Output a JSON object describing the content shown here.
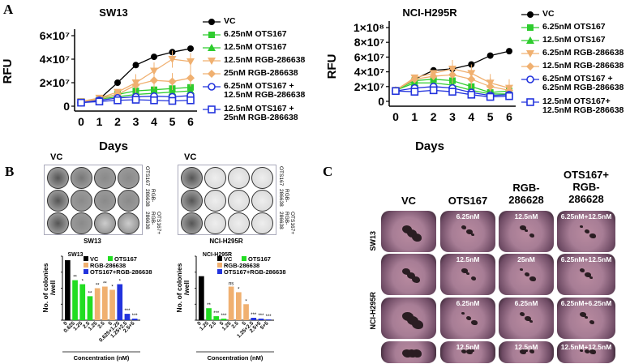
{
  "panels": {
    "A": "A",
    "B": "B",
    "C": "C"
  },
  "chart_data": [
    {
      "type": "line",
      "title": "SW13",
      "xlabel": "Days",
      "ylabel": "RFU",
      "x": [
        0,
        1,
        2,
        3,
        4,
        5,
        6
      ],
      "yticks": [
        "0",
        "2×10⁷",
        "4×10⁷",
        "6×10⁷"
      ],
      "ylim": [
        0,
        60000000
      ],
      "series": [
        {
          "name": "VC",
          "color": "#000000",
          "marker": "circle",
          "values": [
            3500000,
            6000000,
            20000000,
            35000000,
            42000000,
            46000000,
            49000000
          ]
        },
        {
          "name": "6.25nM OTS167",
          "color": "#2ecc2e",
          "marker": "square",
          "values": [
            4000000,
            6500000,
            10000000,
            13000000,
            14000000,
            15000000,
            16000000
          ]
        },
        {
          "name": "12.5nM OTS167",
          "color": "#2ecc2e",
          "marker": "triangle",
          "values": [
            3500000,
            6000000,
            8000000,
            10000000,
            11000000,
            12000000,
            13000000
          ]
        },
        {
          "name": "12.5nM RGB-286638",
          "color": "#f0b070",
          "marker": "triangle-down",
          "values": [
            4000000,
            7000000,
            12000000,
            20000000,
            30000000,
            40000000,
            38000000
          ]
        },
        {
          "name": "25nM RGB-286638",
          "color": "#f0b070",
          "marker": "diamond",
          "values": [
            3500000,
            6000000,
            10000000,
            18000000,
            22000000,
            21000000,
            24000000
          ]
        },
        {
          "name": "6.25nM OTS167 + 12.5nM RGB-286638",
          "color": "#2233dd",
          "marker": "circle-open",
          "values": [
            3000000,
            5000000,
            7000000,
            8000000,
            8500000,
            8000000,
            9000000
          ]
        },
        {
          "name": "12.5nM OTS167 + 25nM RGB-286638",
          "color": "#2233dd",
          "marker": "square-open",
          "values": [
            3000000,
            4000000,
            5000000,
            5500000,
            5000000,
            4500000,
            5000000
          ]
        }
      ]
    },
    {
      "type": "line",
      "title": "NCI-H295R",
      "xlabel": "Days",
      "ylabel": "RFU",
      "x": [
        0,
        1,
        2,
        3,
        4,
        5,
        6
      ],
      "yticks": [
        "0",
        "2×10⁷",
        "4×10⁷",
        "6×10⁷",
        "8×10⁷",
        "1×10⁸"
      ],
      "ylim": [
        0,
        100000000
      ],
      "series": [
        {
          "name": "VC",
          "color": "#000000",
          "marker": "circle",
          "values": [
            15000000,
            30000000,
            42000000,
            44000000,
            50000000,
            62000000,
            68000000
          ]
        },
        {
          "name": "6.25nM OTS167",
          "color": "#2ecc2e",
          "marker": "square",
          "values": [
            15000000,
            28000000,
            30000000,
            28000000,
            20000000,
            12000000,
            14000000
          ]
        },
        {
          "name": "12.5nM OTS167",
          "color": "#2ecc2e",
          "marker": "triangle",
          "values": [
            15000000,
            25000000,
            25000000,
            22000000,
            15000000,
            10000000,
            10000000
          ]
        },
        {
          "name": "6.25nM RGB-286638",
          "color": "#f0b070",
          "marker": "triangle-down",
          "values": [
            15000000,
            32000000,
            38000000,
            44000000,
            38000000,
            25000000,
            18000000
          ]
        },
        {
          "name": "12.5nM RGB-286638",
          "color": "#f0b070",
          "marker": "diamond",
          "values": [
            15000000,
            30000000,
            34000000,
            36000000,
            30000000,
            20000000,
            15000000
          ]
        },
        {
          "name": "6.25nM OTS167 +6.25nM RGB-286638",
          "color": "#2233dd",
          "marker": "circle-open",
          "values": [
            14000000,
            18000000,
            20000000,
            18000000,
            12000000,
            8000000,
            9000000
          ]
        },
        {
          "name": "12.5nM OTS167+ 12.5nM RGB-286638",
          "color": "#2233dd",
          "marker": "square-open",
          "values": [
            14000000,
            13000000,
            15000000,
            13000000,
            9000000,
            6000000,
            7000000
          ]
        }
      ]
    },
    {
      "type": "bar",
      "title": "SW13",
      "ylabel": "No. of colonies /well",
      "xlabel": "Concentration (nM)",
      "legend": [
        "VC",
        "OTS167",
        "RGB-286638",
        "OTS167+RGB-286638"
      ],
      "categories": [
        "0",
        "0.625",
        "1.25",
        "2.5",
        "1.25",
        "2.5",
        "5",
        "0.625+1.25",
        "1.25+2.5",
        "2.5+5"
      ],
      "values": [
        75,
        50,
        45,
        30,
        40,
        42,
        38,
        45,
        8,
        2
      ],
      "colors": [
        "#000000",
        "#22dd22",
        "#22dd22",
        "#22dd22",
        "#f0b070",
        "#f0b070",
        "#f0b070",
        "#2233dd",
        "#2233dd",
        "#2233dd"
      ],
      "annotations": [
        "",
        "**",
        "*",
        "**",
        "**",
        "**",
        "*",
        "*",
        "***",
        "***"
      ],
      "yticks": [
        "0",
        "20",
        "40",
        "60",
        "80"
      ],
      "ylim": [
        0,
        80
      ]
    },
    {
      "type": "bar",
      "title": "NCI-H295R",
      "ylabel": "No. of colonies /well",
      "xlabel": "Concentration (nM)",
      "legend": [
        "VC",
        "OTS167",
        "RGB-286638",
        "OTS167+RGB-286638"
      ],
      "categories": [
        "0",
        "1.25",
        "2.5",
        "5",
        "1.25",
        "2.5",
        "5",
        "1.25+2.5",
        "2.5+5",
        "5+5"
      ],
      "values": [
        55,
        15,
        5,
        2,
        42,
        35,
        20,
        3,
        2,
        1
      ],
      "colors": [
        "#000000",
        "#22dd22",
        "#22dd22",
        "#22dd22",
        "#f0b070",
        "#f0b070",
        "#f0b070",
        "#2233dd",
        "#2233dd",
        "#2233dd"
      ],
      "annotations": [
        "",
        "**",
        "***",
        "***",
        "ns",
        "*",
        "*",
        "***",
        "***",
        "***"
      ],
      "yticks": [
        "0",
        "20",
        "40",
        "60",
        "80"
      ],
      "ylim": [
        0,
        80
      ]
    }
  ],
  "plates": [
    {
      "title": "SW13",
      "vc": "VC",
      "rows": [
        "OTS167",
        "RGB-\n286638",
        "OTS167+\nRGB-\n286638"
      ]
    },
    {
      "title": "NCI-H295R",
      "vc": "VC",
      "rows": [
        "OTS167",
        "RGB-\n286638",
        "OTS167+\nRGB-\n286638"
      ]
    }
  ],
  "panelC": {
    "columns": [
      "VC",
      "OTS167",
      "RGB-\n286628",
      "OTS167+\nRGB-\n286628"
    ],
    "rowgroups": [
      "SW13",
      "NCI-H295R"
    ],
    "dishes": [
      [
        "",
        "6.25nM",
        "12.5nM",
        "6.25nM+12.5nM"
      ],
      [
        "",
        "12.5nM",
        "25nM",
        "6.25nM+12.5nM"
      ],
      [
        "",
        "6.25nM",
        "6.25nM",
        "6.25nM+6.25nM"
      ],
      [
        "",
        "12.5nM",
        "12.5nM",
        "12.5nM+12.5nM"
      ]
    ]
  }
}
